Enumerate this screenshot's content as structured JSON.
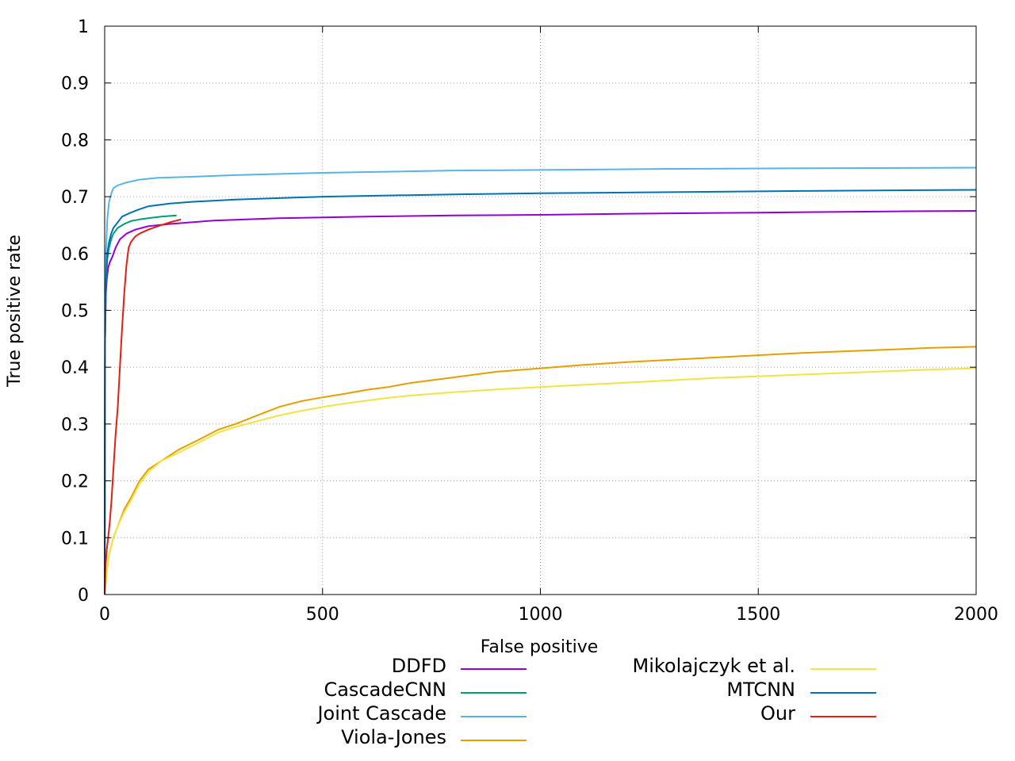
{
  "chart_data": {
    "type": "line",
    "title": "",
    "xlabel": "False positive",
    "ylabel": "True positive rate",
    "xlim": [
      0,
      2000
    ],
    "ylim": [
      0,
      1
    ],
    "xticks": [
      0,
      500,
      1000,
      1500,
      2000
    ],
    "yticks": [
      0,
      0.1,
      0.2,
      0.3,
      0.4,
      0.5,
      0.6,
      0.7,
      0.8,
      0.9,
      1
    ],
    "xtick_labels": [
      "0",
      "500",
      "1000",
      "1500",
      "2000"
    ],
    "ytick_labels": [
      "0",
      "0.1",
      "0.2",
      "0.3",
      "0.4",
      "0.5",
      "0.6",
      "0.7",
      "0.8",
      "0.9",
      "1"
    ],
    "grid": true,
    "legend": "bottom, two columns",
    "series": [
      {
        "name": "DDFD",
        "color": "#9400d3",
        "x": [
          0,
          1,
          3,
          5,
          8,
          12,
          18,
          25,
          35,
          50,
          70,
          100,
          150,
          250,
          400,
          600,
          800,
          1000,
          1200,
          1500,
          1800,
          2000
        ],
        "y": [
          0,
          0.45,
          0.53,
          0.555,
          0.575,
          0.585,
          0.595,
          0.61,
          0.625,
          0.635,
          0.642,
          0.648,
          0.652,
          0.658,
          0.662,
          0.665,
          0.667,
          0.668,
          0.67,
          0.672,
          0.674,
          0.675
        ]
      },
      {
        "name": "CascadeCNN",
        "color": "#009e73",
        "x": [
          0,
          1,
          3,
          6,
          10,
          15,
          20,
          30,
          45,
          60,
          80,
          100,
          130,
          165
        ],
        "y": [
          0,
          0.45,
          0.55,
          0.59,
          0.61,
          0.625,
          0.635,
          0.645,
          0.652,
          0.657,
          0.66,
          0.662,
          0.665,
          0.667
        ]
      },
      {
        "name": "Joint Cascade",
        "color": "#56b4e9",
        "x": [
          0,
          1,
          3,
          6,
          10,
          15,
          20,
          30,
          50,
          80,
          120,
          200,
          300,
          500,
          800,
          1000,
          1300,
          1600,
          2000
        ],
        "y": [
          0,
          0.48,
          0.6,
          0.66,
          0.69,
          0.705,
          0.715,
          0.72,
          0.725,
          0.73,
          0.733,
          0.735,
          0.738,
          0.742,
          0.746,
          0.747,
          0.749,
          0.75,
          0.751
        ]
      },
      {
        "name": "Viola-Jones",
        "color": "#e69f00",
        "x": [
          0,
          5,
          10,
          20,
          30,
          45,
          60,
          80,
          100,
          130,
          170,
          210,
          260,
          300,
          350,
          400,
          450,
          500,
          550,
          600,
          650,
          700,
          800,
          900,
          1000,
          1100,
          1200,
          1300,
          1400,
          1500,
          1600,
          1700,
          1800,
          1900,
          2000
        ],
        "y": [
          0,
          0.04,
          0.07,
          0.1,
          0.12,
          0.15,
          0.17,
          0.2,
          0.22,
          0.235,
          0.255,
          0.27,
          0.29,
          0.3,
          0.315,
          0.33,
          0.34,
          0.347,
          0.353,
          0.36,
          0.365,
          0.372,
          0.382,
          0.392,
          0.398,
          0.404,
          0.409,
          0.413,
          0.417,
          0.421,
          0.425,
          0.428,
          0.431,
          0.434,
          0.436
        ]
      },
      {
        "name": "Mikolajczyk et al.",
        "color": "#f0e442",
        "x": [
          0,
          5,
          10,
          20,
          30,
          45,
          60,
          80,
          100,
          130,
          170,
          210,
          260,
          300,
          350,
          400,
          450,
          500,
          550,
          600,
          650,
          700,
          800,
          900,
          1000,
          1100,
          1200,
          1300,
          1400,
          1500,
          1600,
          1700,
          1800,
          1900,
          2000
        ],
        "y": [
          0,
          0.04,
          0.07,
          0.1,
          0.12,
          0.145,
          0.165,
          0.195,
          0.215,
          0.235,
          0.25,
          0.265,
          0.285,
          0.295,
          0.305,
          0.315,
          0.323,
          0.33,
          0.336,
          0.341,
          0.346,
          0.35,
          0.356,
          0.361,
          0.365,
          0.369,
          0.373,
          0.377,
          0.381,
          0.384,
          0.387,
          0.39,
          0.393,
          0.396,
          0.398
        ]
      },
      {
        "name": "MTCNN",
        "color": "#0072b2",
        "x": [
          0,
          1,
          3,
          6,
          10,
          15,
          20,
          30,
          40,
          60,
          80,
          100,
          150,
          200,
          300,
          500,
          800,
          1000,
          1300,
          1600,
          2000
        ],
        "y": [
          0,
          0.45,
          0.55,
          0.6,
          0.62,
          0.635,
          0.645,
          0.655,
          0.665,
          0.672,
          0.678,
          0.683,
          0.688,
          0.691,
          0.695,
          0.7,
          0.704,
          0.706,
          0.708,
          0.71,
          0.712
        ]
      },
      {
        "name": "Our",
        "color": "#e51e10",
        "x": [
          0,
          2,
          5,
          8,
          12,
          16,
          20,
          25,
          30,
          35,
          40,
          45,
          50,
          55,
          60,
          70,
          80,
          100,
          130,
          150,
          175
        ],
        "y": [
          0,
          0.05,
          0.08,
          0.1,
          0.13,
          0.17,
          0.22,
          0.28,
          0.33,
          0.4,
          0.47,
          0.53,
          0.58,
          0.61,
          0.62,
          0.63,
          0.635,
          0.642,
          0.65,
          0.655,
          0.66
        ]
      }
    ]
  }
}
